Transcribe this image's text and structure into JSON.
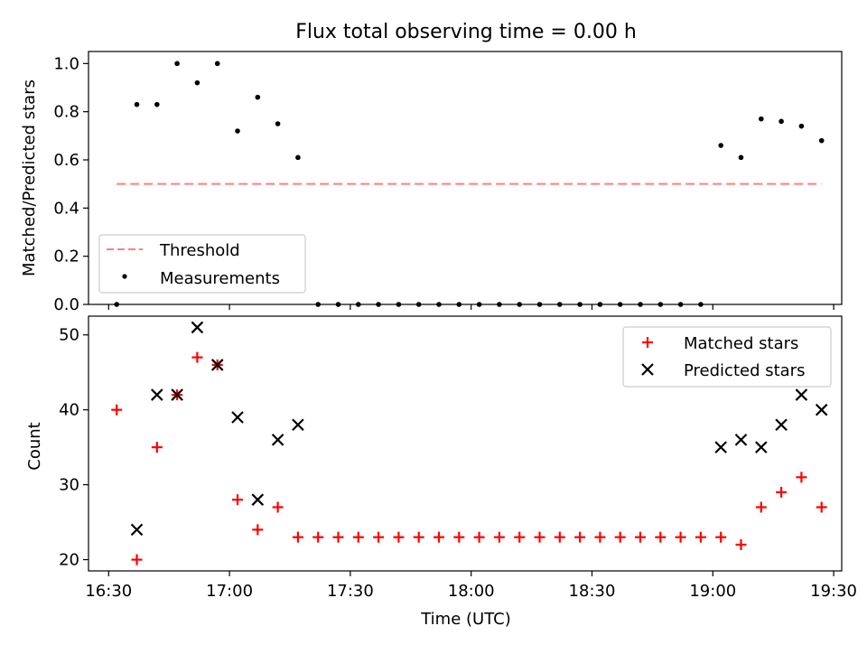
{
  "figure": {
    "title": "Flux total observing time = 0.00 h",
    "xlabel": "Time (UTC)",
    "xticks": [
      "16:30",
      "17:00",
      "17:30",
      "18:00",
      "18:30",
      "19:00",
      "19:30"
    ]
  },
  "top": {
    "ylabel": "Matched/Predicted stars",
    "yticks": [
      "0.0",
      "0.2",
      "0.4",
      "0.6",
      "0.8",
      "1.0"
    ],
    "legend": {
      "threshold_label": "Threshold",
      "measurements_label": "Measurements"
    }
  },
  "bottom": {
    "ylabel": "Count",
    "yticks": [
      "20",
      "30",
      "40",
      "50"
    ],
    "legend": {
      "matched_label": "Matched stars",
      "predicted_label": "Predicted stars"
    }
  },
  "chart_data": [
    {
      "type": "scatter",
      "title": "Flux total observing time = 0.00 h",
      "xlabel": "",
      "ylabel": "Matched/Predicted stars",
      "x": [
        "16:32",
        "16:37",
        "16:42",
        "16:47",
        "16:52",
        "16:57",
        "17:02",
        "17:07",
        "17:12",
        "17:17",
        "17:22",
        "17:27",
        "17:32",
        "17:37",
        "17:42",
        "17:47",
        "17:52",
        "17:57",
        "18:02",
        "18:07",
        "18:12",
        "18:17",
        "18:22",
        "18:27",
        "18:32",
        "18:37",
        "18:42",
        "18:47",
        "18:52",
        "18:57",
        "19:02",
        "19:07",
        "19:12",
        "19:17",
        "19:22",
        "19:27"
      ],
      "series": [
        {
          "name": "Measurements",
          "marker": "dot",
          "color": "#000000",
          "values": [
            0.0,
            0.83,
            0.83,
            1.0,
            0.92,
            1.0,
            0.72,
            0.86,
            0.75,
            0.61,
            0,
            0,
            0,
            0,
            0,
            0,
            0,
            0,
            0,
            0,
            0,
            0,
            0,
            0,
            0,
            0,
            0,
            0,
            0,
            0,
            0.66,
            0.61,
            0.77,
            0.76,
            0.74,
            0.68
          ]
        },
        {
          "name": "Threshold",
          "style": "dashed",
          "color": "#ff7f7f",
          "x": [
            "16:32",
            "19:27"
          ],
          "values": [
            0.5,
            0.5
          ]
        }
      ],
      "ylim": [
        0,
        1.05
      ],
      "legend": "lower-left"
    },
    {
      "type": "scatter",
      "xlabel": "Time (UTC)",
      "ylabel": "Count",
      "series": [
        {
          "name": "Matched stars",
          "marker": "+",
          "color": "#ff0000",
          "x": [
            "16:32",
            "16:37",
            "16:42",
            "16:47",
            "16:52",
            "16:57",
            "17:02",
            "17:07",
            "17:12",
            "17:17",
            "17:22",
            "17:27",
            "17:32",
            "17:37",
            "17:42",
            "17:47",
            "17:52",
            "17:57",
            "18:02",
            "18:07",
            "18:12",
            "18:17",
            "18:22",
            "18:27",
            "18:32",
            "18:37",
            "18:42",
            "18:47",
            "18:52",
            "18:57",
            "19:02",
            "19:07",
            "19:12",
            "19:17",
            "19:22",
            "19:27"
          ],
          "values": [
            40,
            20,
            35,
            42,
            47,
            46,
            28,
            24,
            27,
            23,
            23,
            23,
            23,
            23,
            23,
            23,
            23,
            23,
            23,
            23,
            23,
            23,
            23,
            23,
            23,
            23,
            23,
            23,
            23,
            23,
            23,
            22,
            27,
            29,
            31,
            27
          ]
        },
        {
          "name": "Predicted stars",
          "marker": "x",
          "color": "#000000",
          "x": [
            "16:37",
            "16:42",
            "16:47",
            "16:52",
            "16:57",
            "17:02",
            "17:07",
            "17:12",
            "17:17",
            "19:02",
            "19:07",
            "19:12",
            "19:17",
            "19:22",
            "19:27"
          ],
          "values": [
            24,
            42,
            42,
            51,
            46,
            39,
            28,
            36,
            38,
            35,
            36,
            35,
            38,
            42,
            40
          ]
        }
      ],
      "ylim": [
        18.5,
        52.5
      ],
      "legend": "top-right"
    }
  ]
}
